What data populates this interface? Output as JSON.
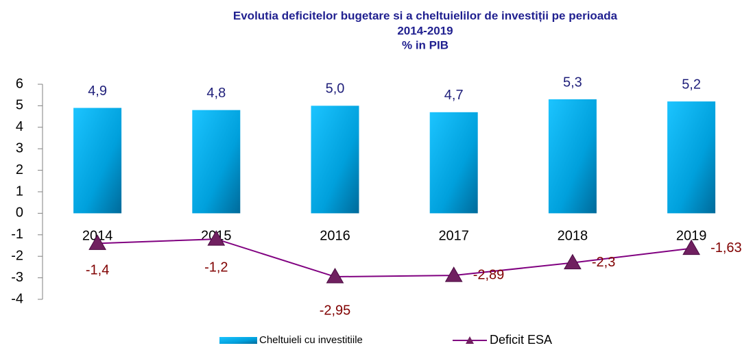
{
  "chart_data": {
    "type": "bar",
    "title": [
      "Evolutia deficitelor bugetare si a cheltuielilor de investiții pe perioada",
      "2014-2019",
      "% in PIB"
    ],
    "categories": [
      "2014",
      "2015",
      "2016",
      "2017",
      "2018",
      "2019"
    ],
    "series": [
      {
        "name": "Cheltuieli cu investitiile",
        "type": "bar",
        "color": "#00b0f0",
        "values": [
          4.9,
          4.8,
          5.0,
          4.7,
          5.3,
          5.2
        ],
        "value_labels": [
          "4,9",
          "4,8",
          "5,0",
          "4,7",
          "5,3",
          "5,2"
        ]
      },
      {
        "name": "Deficit ESA",
        "type": "line",
        "color": "#800080",
        "values": [
          -1.4,
          -1.2,
          -2.95,
          -2.89,
          -2.3,
          -1.63
        ],
        "value_labels": [
          "-1,4",
          "-1,2",
          "-2,95",
          "-2,89",
          "-2,3",
          "-1,63"
        ]
      }
    ],
    "ylim": [
      -4,
      6
    ],
    "yticks": [
      -4,
      -3,
      -2,
      -1,
      0,
      1,
      2,
      3,
      4,
      5,
      6
    ],
    "legend": "bottom"
  }
}
